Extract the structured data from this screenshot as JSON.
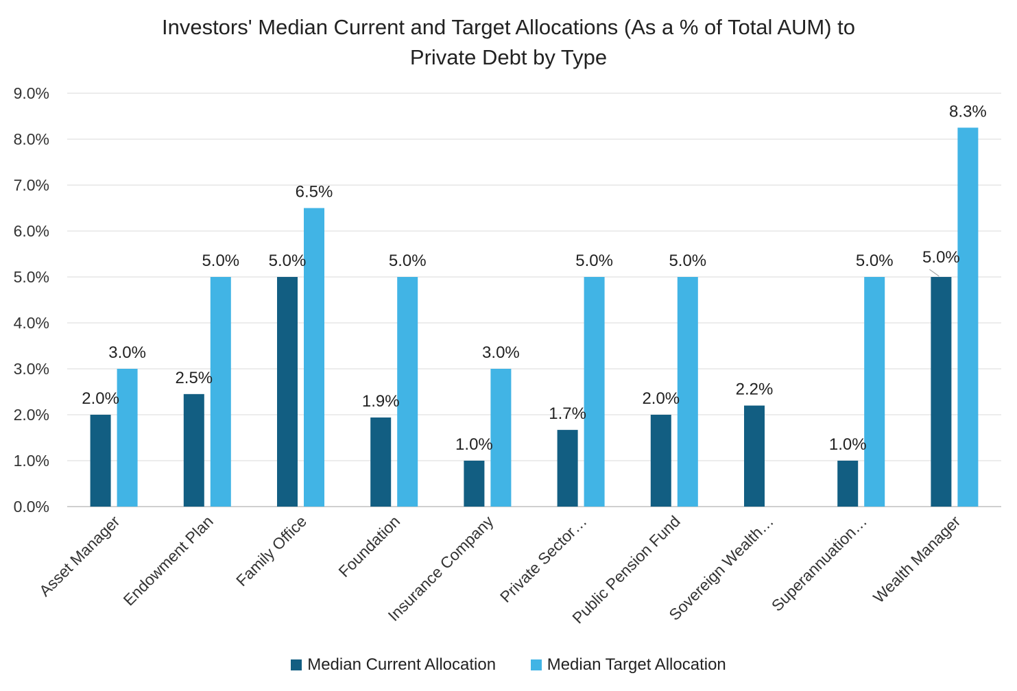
{
  "colors": {
    "current": "#125E82",
    "target": "#41B4E5",
    "grid": "#d9d9d9",
    "axis": "#bfbfbf"
  },
  "chart_data": {
    "type": "bar",
    "title_lines": [
      "Investors' Median Current and Target Allocations (As a % of Total AUM) to",
      "Private Debt by Type"
    ],
    "categories": [
      "Asset Manager",
      "Endowment Plan",
      "Family Office",
      "Foundation",
      "Insurance Company",
      "Private Sector…",
      "Public Pension Fund",
      "Sovereign Wealth…",
      "Superannuation…",
      "Wealth Manager"
    ],
    "series": [
      {
        "name": "Median Current Allocation",
        "values": [
          2.0,
          2.45,
          5.0,
          1.94,
          1.0,
          1.67,
          2.0,
          2.2,
          1.0,
          5.0
        ],
        "labels": [
          "2.0%",
          "2.5%",
          "5.0%",
          "1.9%",
          "1.0%",
          "1.7%",
          "2.0%",
          "2.2%",
          "1.0%",
          "5.0%"
        ]
      },
      {
        "name": "Median Target Allocation",
        "values": [
          3.0,
          5.0,
          6.5,
          5.0,
          3.0,
          5.0,
          5.0,
          null,
          5.0,
          8.25
        ],
        "labels": [
          "3.0%",
          "5.0%",
          "6.5%",
          "5.0%",
          "3.0%",
          "5.0%",
          "5.0%",
          null,
          "5.0%",
          "8.3%"
        ]
      }
    ],
    "ylim": [
      0,
      9
    ],
    "yticks": [
      "0.0%",
      "1.0%",
      "2.0%",
      "3.0%",
      "4.0%",
      "5.0%",
      "6.0%",
      "7.0%",
      "8.0%",
      "9.0%"
    ],
    "grid": true,
    "legend_position": "bottom"
  }
}
